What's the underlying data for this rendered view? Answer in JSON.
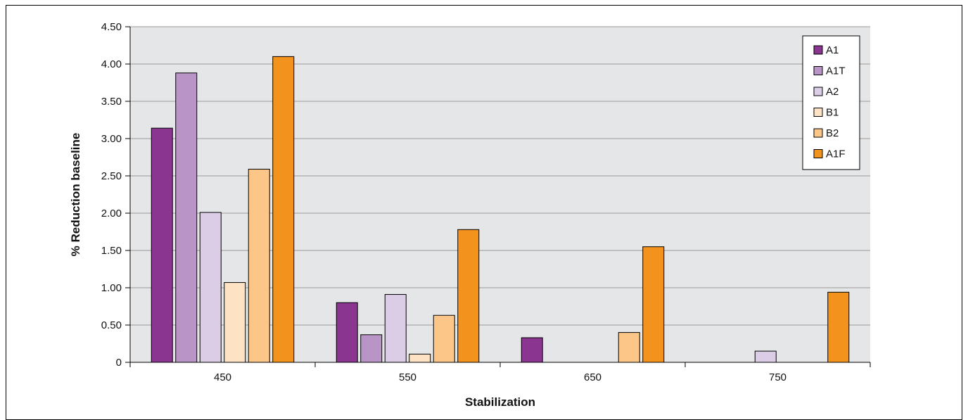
{
  "chart_data": {
    "type": "bar",
    "title": "",
    "xlabel": "Stabilization",
    "ylabel": "% Reduction baseline",
    "categories": [
      "450",
      "550",
      "650",
      "750"
    ],
    "ylim": [
      0,
      4.5
    ],
    "yticks": [
      "0",
      "0.50",
      "1.00",
      "1.50",
      "2.00",
      "2.50",
      "3.00",
      "3.50",
      "4.00",
      "4.50"
    ],
    "grid": true,
    "legend_position": "top-right",
    "plot_background": "#e5e6e7",
    "series": [
      {
        "name": "A1",
        "color": "#8a3590",
        "values": [
          3.14,
          0.8,
          0.33,
          0
        ]
      },
      {
        "name": "A1T",
        "color": "#b895c6",
        "values": [
          3.88,
          0.37,
          0,
          0
        ]
      },
      {
        "name": "A2",
        "color": "#dccde6",
        "values": [
          2.01,
          0.91,
          0,
          0.15
        ]
      },
      {
        "name": "B1",
        "color": "#fde3c4",
        "values": [
          1.07,
          0.11,
          0,
          0
        ]
      },
      {
        "name": "B2",
        "color": "#fbc688",
        "values": [
          2.59,
          0.63,
          0.4,
          0
        ]
      },
      {
        "name": "A1F",
        "color": "#f3931e",
        "values": [
          4.1,
          1.78,
          1.55,
          0.94
        ]
      }
    ]
  }
}
